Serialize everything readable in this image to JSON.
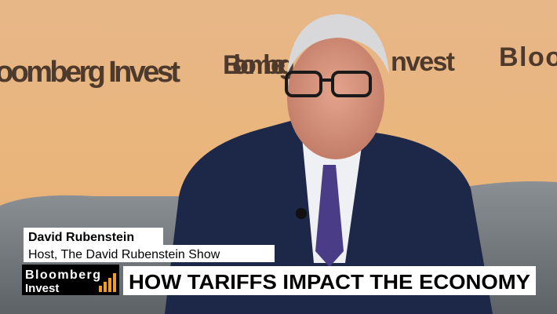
{
  "backdrop": {
    "signs": [
      "oomberg Invest",
      "Bloomberg",
      "nvest",
      "Bloo"
    ]
  },
  "lower_third": {
    "name": "David Rubenstein",
    "role": "Host, The David Rubenstein Show",
    "logo": {
      "line1": "Bloomberg",
      "line2": "Invest"
    },
    "headline": "HOW TARIFFS IMPACT THE ECONOMY"
  }
}
